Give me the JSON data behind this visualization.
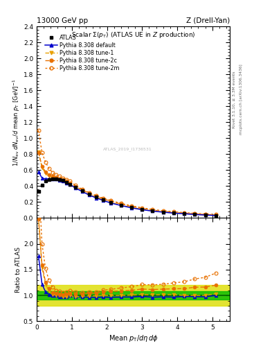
{
  "title_left": "13000 GeV pp",
  "title_right": "Z (Drell-Yan)",
  "plot_title": "Scalar Σ(p_T) (ATLAS UE in Z production)",
  "ylabel_main": "1/N_{ev} dN_{ev}/d mean p_T [GeV]^{-1}",
  "ylabel_ratio": "Ratio to ATLAS",
  "xlabel": "Mean p_{T}/dη dφ",
  "right_label1": "Rivet 3.1.10, ≥ 3.3M events",
  "right_label2": "mcplots.cern.ch [arXiv:1306.3436]",
  "watermark": "ATLAS_2019_I1736531",
  "x_data": [
    0.05,
    0.15,
    0.25,
    0.35,
    0.45,
    0.55,
    0.65,
    0.75,
    0.85,
    0.95,
    1.1,
    1.3,
    1.5,
    1.7,
    1.9,
    2.1,
    2.4,
    2.7,
    3.0,
    3.3,
    3.6,
    3.9,
    4.2,
    4.5,
    4.8,
    5.1
  ],
  "atlas_y": [
    0.33,
    0.41,
    0.46,
    0.48,
    0.49,
    0.49,
    0.48,
    0.47,
    0.45,
    0.42,
    0.385,
    0.34,
    0.295,
    0.26,
    0.225,
    0.195,
    0.16,
    0.13,
    0.105,
    0.088,
    0.074,
    0.062,
    0.053,
    0.044,
    0.037,
    0.03
  ],
  "atlas_yerr": [
    0.015,
    0.01,
    0.008,
    0.007,
    0.007,
    0.007,
    0.007,
    0.007,
    0.007,
    0.007,
    0.007,
    0.006,
    0.005,
    0.005,
    0.005,
    0.004,
    0.004,
    0.003,
    0.003,
    0.003,
    0.002,
    0.002,
    0.002,
    0.002,
    0.002,
    0.002
  ],
  "pythia_default_y": [
    0.58,
    0.5,
    0.49,
    0.49,
    0.49,
    0.49,
    0.47,
    0.46,
    0.44,
    0.42,
    0.375,
    0.33,
    0.285,
    0.25,
    0.218,
    0.188,
    0.155,
    0.126,
    0.103,
    0.085,
    0.072,
    0.06,
    0.052,
    0.043,
    0.036,
    0.03
  ],
  "pythia_tune1_y": [
    0.83,
    0.63,
    0.56,
    0.52,
    0.5,
    0.49,
    0.48,
    0.46,
    0.44,
    0.42,
    0.375,
    0.335,
    0.292,
    0.258,
    0.225,
    0.195,
    0.16,
    0.131,
    0.107,
    0.089,
    0.075,
    0.063,
    0.053,
    0.044,
    0.037,
    0.031
  ],
  "pythia_tune2c_y": [
    0.82,
    0.65,
    0.58,
    0.54,
    0.52,
    0.51,
    0.49,
    0.48,
    0.46,
    0.44,
    0.395,
    0.35,
    0.308,
    0.272,
    0.24,
    0.21,
    0.174,
    0.143,
    0.118,
    0.098,
    0.083,
    0.07,
    0.06,
    0.051,
    0.043,
    0.036
  ],
  "pythia_tune2m_y": [
    1.1,
    0.82,
    0.7,
    0.62,
    0.57,
    0.54,
    0.52,
    0.5,
    0.48,
    0.46,
    0.41,
    0.36,
    0.315,
    0.278,
    0.248,
    0.218,
    0.183,
    0.152,
    0.127,
    0.106,
    0.09,
    0.077,
    0.067,
    0.058,
    0.05,
    0.043
  ],
  "ratio_default": [
    1.76,
    1.22,
    1.07,
    1.02,
    1.0,
    1.0,
    0.98,
    0.98,
    0.978,
    1.0,
    0.974,
    0.971,
    0.966,
    0.962,
    0.969,
    0.964,
    0.969,
    0.969,
    0.981,
    0.966,
    0.973,
    0.968,
    0.981,
    0.977,
    0.973,
    1.0
  ],
  "ratio_tune1": [
    2.52,
    1.54,
    1.22,
    1.08,
    1.02,
    1.0,
    1.0,
    0.979,
    0.978,
    1.0,
    0.974,
    0.985,
    0.99,
    0.992,
    1.0,
    1.0,
    1.0,
    1.008,
    1.019,
    1.011,
    1.014,
    1.016,
    1.0,
    1.0,
    1.0,
    1.033
  ],
  "ratio_tune2c": [
    2.48,
    1.59,
    1.26,
    1.13,
    1.06,
    1.04,
    1.02,
    1.02,
    1.022,
    1.048,
    1.026,
    1.029,
    1.044,
    1.046,
    1.067,
    1.077,
    1.088,
    1.1,
    1.124,
    1.114,
    1.122,
    1.129,
    1.132,
    1.159,
    1.162,
    1.2
  ],
  "ratio_tune2m": [
    3.33,
    2.0,
    1.52,
    1.29,
    1.16,
    1.1,
    1.08,
    1.06,
    1.067,
    1.095,
    1.065,
    1.059,
    1.068,
    1.069,
    1.102,
    1.118,
    1.144,
    1.169,
    1.21,
    1.205,
    1.216,
    1.242,
    1.264,
    1.318,
    1.351,
    1.433
  ],
  "color_atlas": "#000000",
  "color_default": "#0000cc",
  "color_tune1": "#e8a000",
  "color_tune2c": "#e87000",
  "color_tune2m": "#e87000",
  "color_green": "#00bb00",
  "color_yellow": "#dddd00",
  "ylim_main": [
    0.0,
    2.4
  ],
  "ylim_ratio": [
    0.5,
    2.5
  ],
  "xlim": [
    0.0,
    5.5
  ],
  "yticks_main": [
    0.0,
    0.2,
    0.4,
    0.6,
    0.8,
    1.0,
    1.2,
    1.4,
    1.6,
    1.8,
    2.0,
    2.2,
    2.4
  ],
  "yticks_ratio": [
    0.5,
    1.0,
    1.5,
    2.0
  ]
}
